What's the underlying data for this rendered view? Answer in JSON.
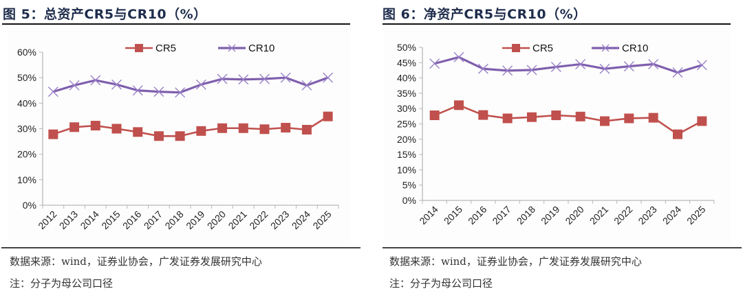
{
  "figures": [
    {
      "title": "图 5：总资产CR5与CR10（%）",
      "source": "数据来源：wind，证券业协会，广发证券发展研究中心",
      "note": "注：分子为母公司口径"
    },
    {
      "title": "图 6：净资产CR5与CR10（%）",
      "source": "数据来源：wind，证券业协会，广发证券发展研究中心",
      "note": "注：分子为母公司口径"
    }
  ],
  "chart_data": [
    {
      "type": "line",
      "title": "总资产CR5与CR10（%）",
      "xlabel": "",
      "ylabel": "",
      "categories": [
        "2012",
        "2013",
        "2014",
        "2015",
        "2016",
        "2017",
        "2018",
        "2019",
        "2020",
        "2021",
        "2022",
        "2023",
        "2024",
        "2025"
      ],
      "ylim": [
        0,
        60
      ],
      "yticks": [
        0,
        10,
        20,
        30,
        40,
        50,
        60
      ],
      "ytick_labels": [
        "0%",
        "10%",
        "20%",
        "30%",
        "40%",
        "50%",
        "60%"
      ],
      "grid": false,
      "legend": "top-center",
      "series": [
        {
          "name": "CR5",
          "color": "#c0504d",
          "marker": "square",
          "values": [
            27.8,
            30.6,
            31.2,
            30.0,
            28.7,
            27.1,
            27.1,
            29.1,
            30.2,
            30.2,
            29.8,
            30.4,
            29.6,
            34.8
          ]
        },
        {
          "name": "CR10",
          "color": "#7f5fad",
          "marker": "x",
          "values": [
            44.5,
            47.0,
            49.0,
            47.3,
            45.0,
            44.5,
            44.2,
            47.3,
            49.5,
            49.3,
            49.5,
            50.0,
            47.0,
            50.0
          ]
        }
      ]
    },
    {
      "type": "line",
      "title": "净资产CR5与CR10（%）",
      "xlabel": "",
      "ylabel": "",
      "categories": [
        "2014",
        "2015",
        "2016",
        "2017",
        "2018",
        "2019",
        "2020",
        "2021",
        "2022",
        "2023",
        "2024",
        "2025"
      ],
      "ylim": [
        0,
        50
      ],
      "yticks": [
        0,
        5,
        10,
        15,
        20,
        25,
        30,
        35,
        40,
        45,
        50
      ],
      "ytick_labels": [
        "0%",
        "5%",
        "10%",
        "15%",
        "20%",
        "25%",
        "30%",
        "35%",
        "40%",
        "45%",
        "50%"
      ],
      "grid": false,
      "legend": "top-center",
      "series": [
        {
          "name": "CR5",
          "color": "#c0504d",
          "marker": "square",
          "values": [
            27.8,
            31.1,
            27.9,
            26.8,
            27.2,
            27.8,
            27.4,
            25.9,
            26.8,
            27.0,
            21.6,
            25.9
          ]
        },
        {
          "name": "CR10",
          "color": "#7f5fad",
          "marker": "x",
          "values": [
            44.7,
            46.8,
            43.0,
            42.4,
            42.6,
            43.6,
            44.5,
            43.0,
            43.8,
            44.5,
            41.8,
            44.2
          ]
        }
      ]
    }
  ]
}
